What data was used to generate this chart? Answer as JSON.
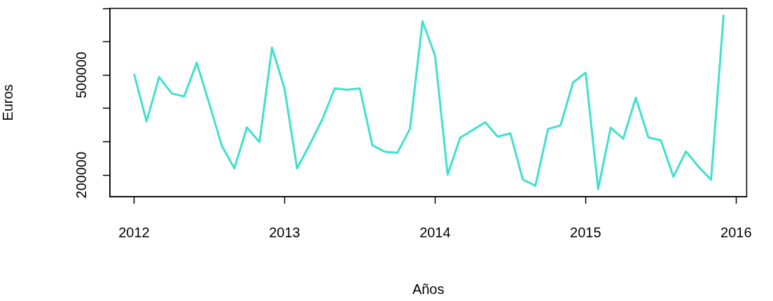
{
  "chart_data": {
    "type": "line",
    "xlabel": "Años",
    "ylabel": "Euros",
    "x": [
      2012,
      2012.0833,
      2012.1667,
      2012.25,
      2012.3333,
      2012.4167,
      2012.5,
      2012.5833,
      2012.6667,
      2012.75,
      2012.8333,
      2012.9167,
      2013,
      2013.0833,
      2013.1667,
      2013.25,
      2013.3333,
      2013.4167,
      2013.5,
      2013.5833,
      2013.6667,
      2013.75,
      2013.8333,
      2013.9167,
      2014,
      2014.0833,
      2014.1667,
      2014.25,
      2014.3333,
      2014.4167,
      2014.5,
      2014.5833,
      2014.6667,
      2014.75,
      2014.8333,
      2014.9167,
      2015,
      2015.0833,
      2015.1667,
      2015.25,
      2015.3333,
      2015.4167,
      2015.5,
      2015.5833,
      2015.6667,
      2015.75,
      2015.8333,
      2015.9167
    ],
    "series": [
      {
        "color": "#40e0d0",
        "values": [
          504000,
          361000,
          494000,
          445000,
          436000,
          537000,
          414000,
          288000,
          220000,
          343000,
          299000,
          582000,
          459000,
          220000,
          291000,
          366000,
          460000,
          456000,
          460000,
          289000,
          270000,
          267000,
          339000,
          661000,
          558000,
          201000,
          312000,
          335000,
          358000,
          315000,
          325000,
          186000,
          168000,
          338000,
          349000,
          478000,
          507000,
          158000,
          342000,
          309000,
          432000,
          313000,
          304000,
          195000,
          271000,
          225000,
          186000,
          681000
        ]
      }
    ],
    "xlim": [
      2011.84,
      2016.07
    ],
    "xticks": [
      2012,
      2013,
      2014,
      2015,
      2016
    ],
    "ylim": [
      135000,
      700000
    ],
    "yticks": [
      {
        "value": 200000,
        "label": "200000"
      },
      {
        "value": 300000,
        "label": null
      },
      {
        "value": 400000,
        "label": null
      },
      {
        "value": 500000,
        "label": "500000"
      },
      {
        "value": 600000,
        "label": null
      },
      {
        "value": 700000,
        "label": null
      }
    ],
    "grid": false,
    "legend": false,
    "marker": "none",
    "line_style": "solid"
  }
}
